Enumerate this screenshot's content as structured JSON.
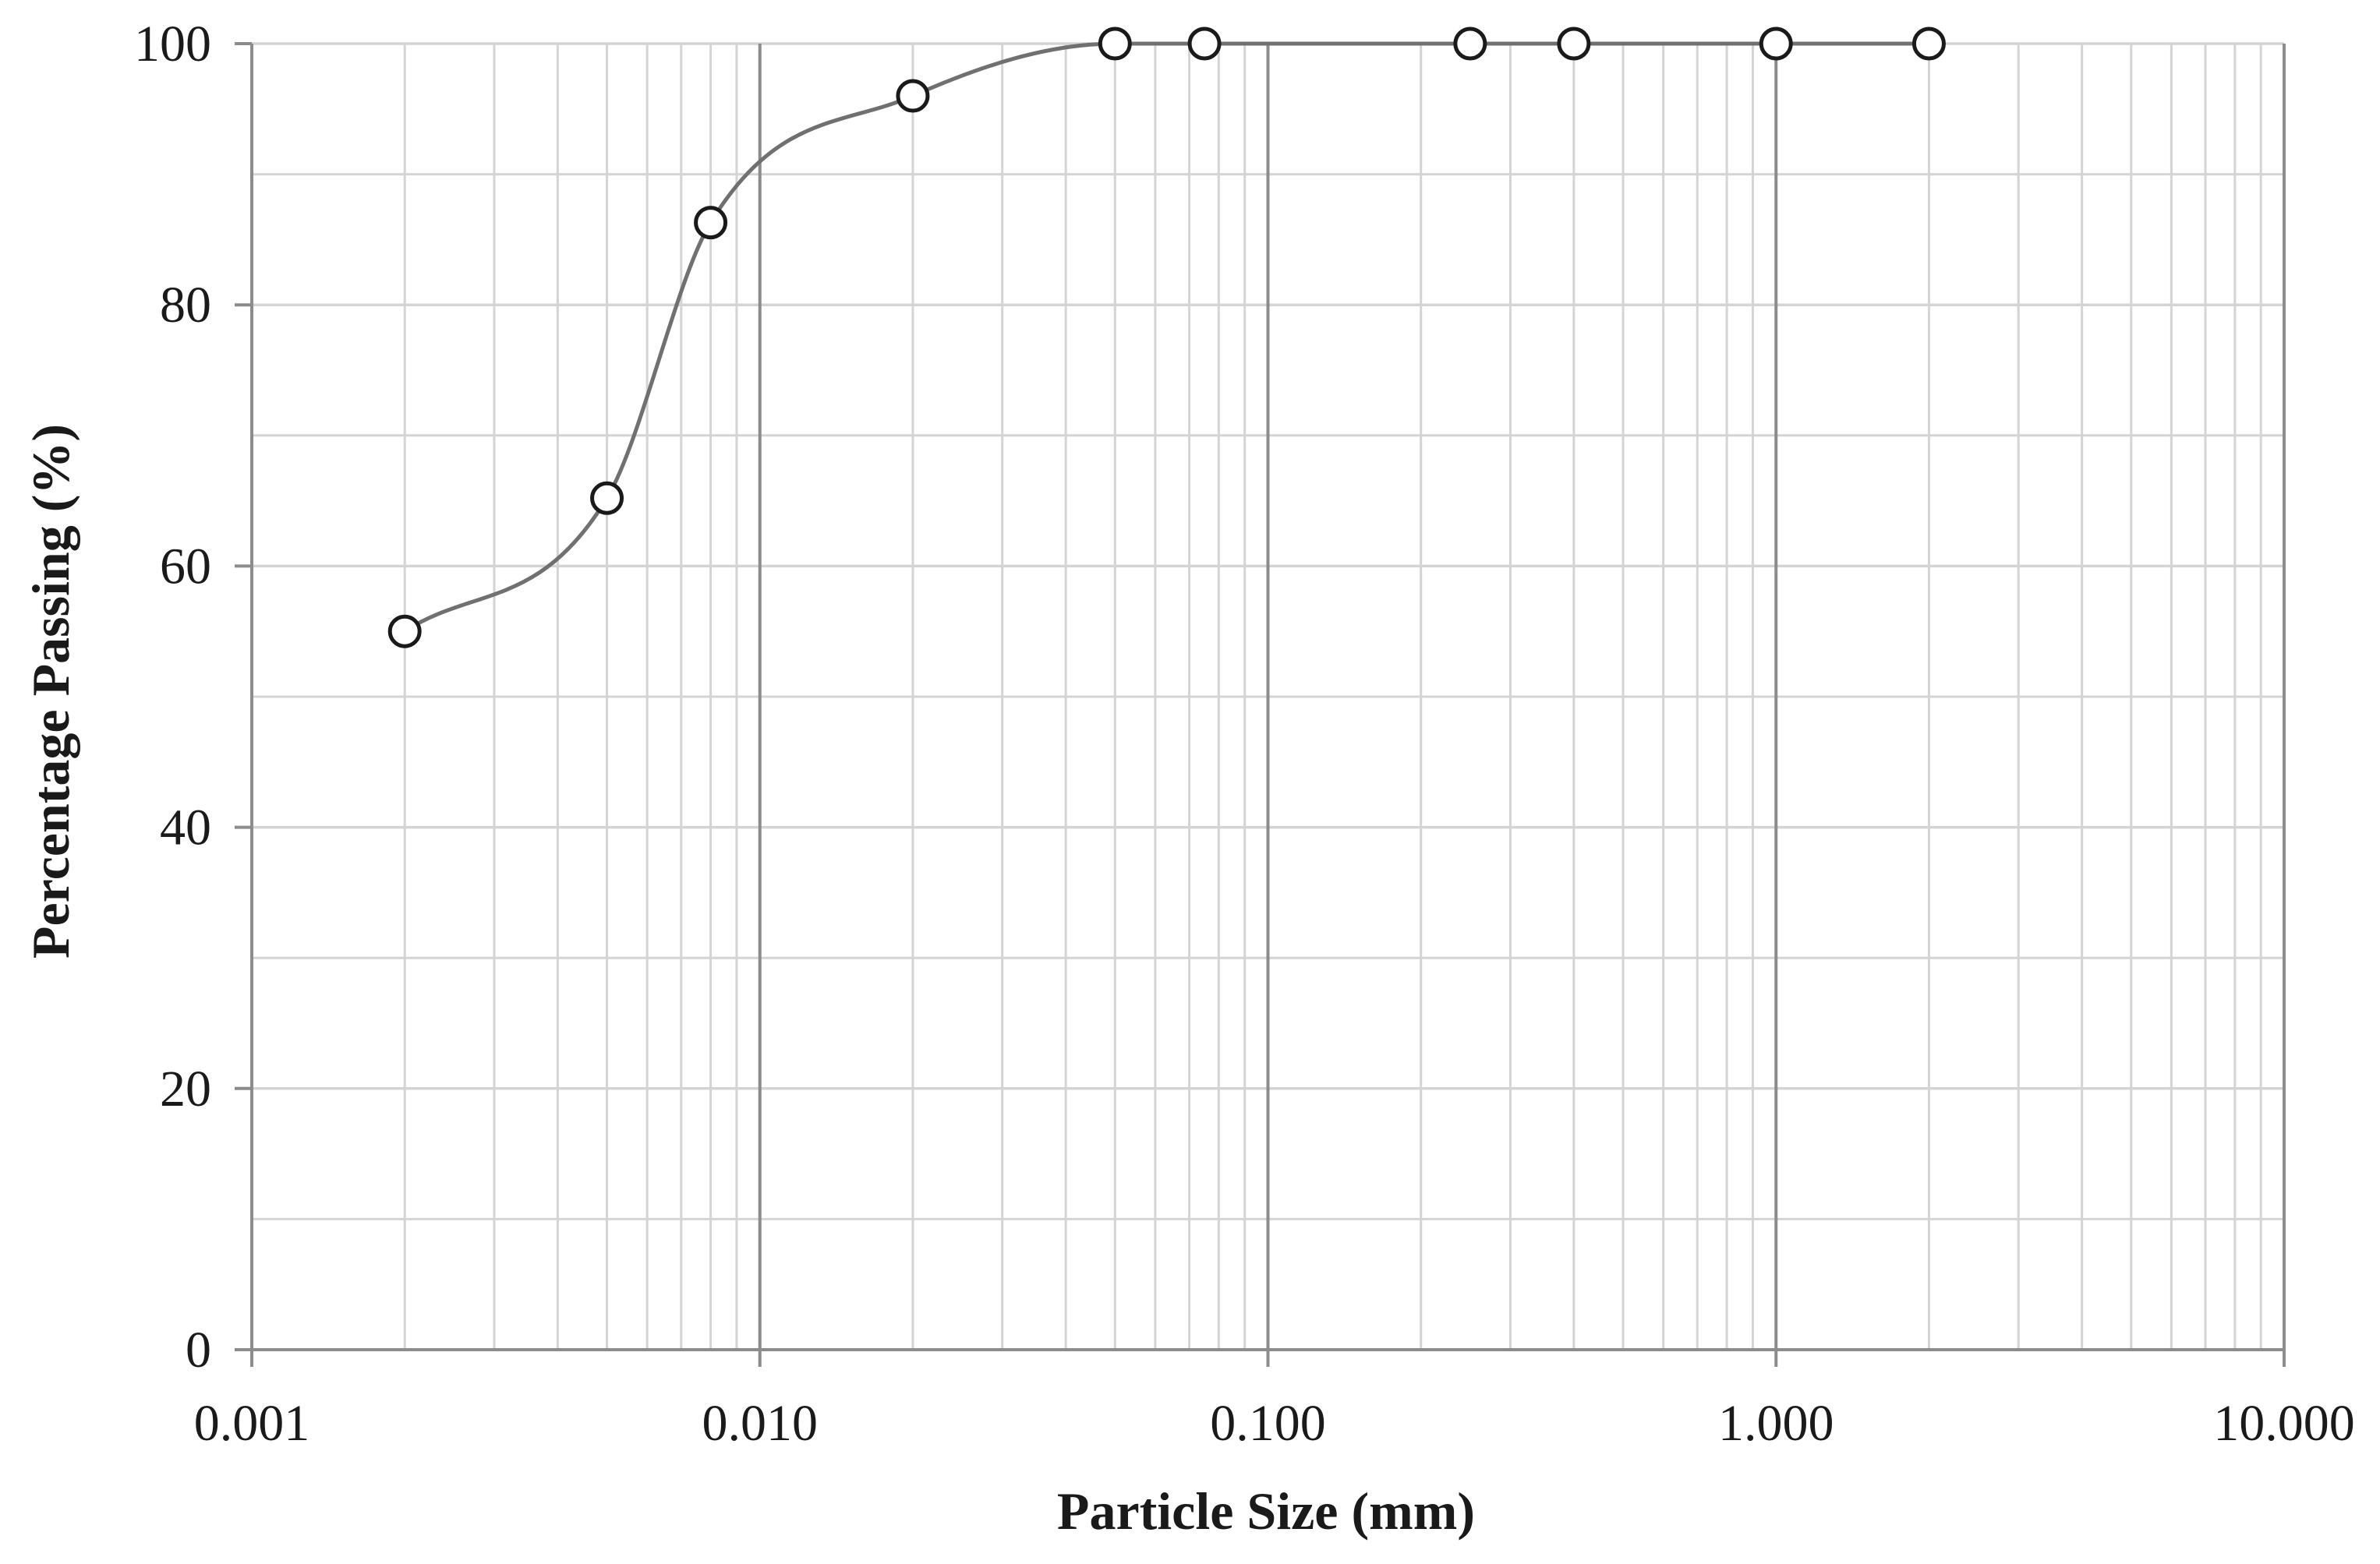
{
  "chart_data": {
    "type": "scatter",
    "title": "",
    "xlabel": "Particle Size (mm)",
    "ylabel": "Percentage Passing (%)",
    "x_scale": "log",
    "xlim": [
      0.001,
      10.0
    ],
    "ylim": [
      0,
      100
    ],
    "x_ticks": [
      0.001,
      0.01,
      0.1,
      1.0,
      10.0
    ],
    "x_tick_labels": [
      "0.001",
      "0.010",
      "0.100",
      "1.000",
      "10.000"
    ],
    "y_ticks": [
      0,
      20,
      40,
      60,
      80,
      100
    ],
    "y_tick_labels": [
      "0",
      "20",
      "40",
      "60",
      "80",
      "100"
    ],
    "grid": true,
    "legend": "none",
    "series": [
      {
        "marker": "open-circle",
        "line": "smoothed",
        "color": "#707070",
        "x": [
          0.002,
          0.005,
          0.008,
          0.02,
          0.05,
          0.075,
          0.25,
          0.4,
          1.0,
          2.0
        ],
        "y": [
          55,
          65.2,
          86.3,
          96,
          100,
          100,
          100,
          100,
          100,
          100
        ]
      }
    ]
  },
  "colors": {
    "minor_grid": "#d4d4d4",
    "major_grid": "#8c8c8c",
    "axis": "#8c8c8c",
    "marker_stroke": "#1a1a1a",
    "curve": "#707070"
  }
}
